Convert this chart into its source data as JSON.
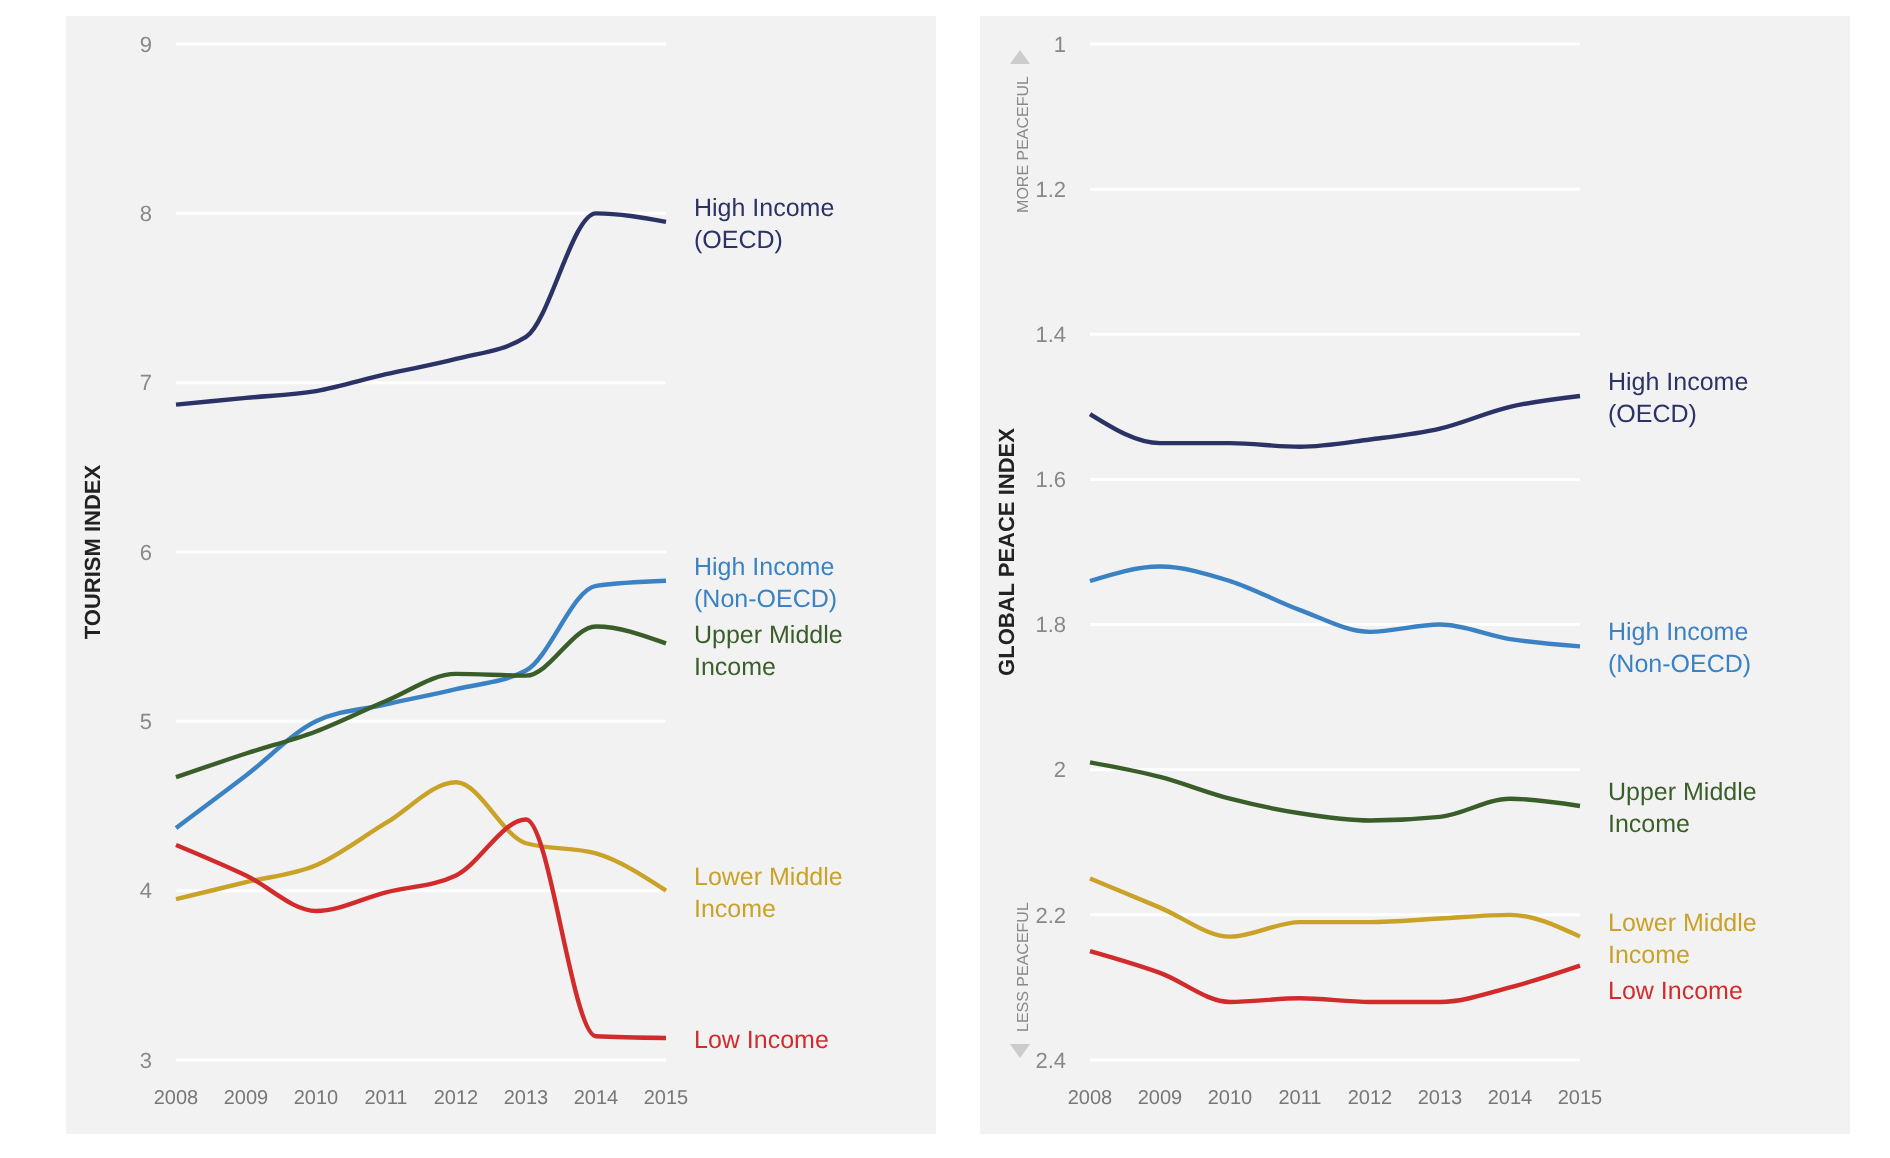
{
  "chart_data": [
    {
      "type": "line",
      "ylabel": "TOURISM INDEX",
      "x": [
        2008,
        2009,
        2010,
        2011,
        2012,
        2013,
        2014,
        2015
      ],
      "xlim": [
        2008,
        2015
      ],
      "xticks": [
        2008,
        2009,
        2010,
        2011,
        2012,
        2013,
        2014,
        2015
      ],
      "ylim": [
        3,
        9
      ],
      "yticks": [
        3,
        4,
        5,
        6,
        7,
        8,
        9
      ],
      "grid": "y",
      "series": [
        {
          "name": "High Income (OECD)",
          "color": "#2b3366",
          "values": [
            6.87,
            6.91,
            6.95,
            7.05,
            7.14,
            7.27,
            8.0,
            7.95
          ]
        },
        {
          "name": "High Income (Non-OECD)",
          "color": "#3b82c4",
          "values": [
            4.37,
            4.68,
            5.0,
            5.1,
            5.19,
            5.3,
            5.8,
            5.83
          ]
        },
        {
          "name": "Upper Middle Income",
          "color": "#3a5e2a",
          "values": [
            4.67,
            4.81,
            4.94,
            5.12,
            5.28,
            5.27,
            5.56,
            5.46
          ]
        },
        {
          "name": "Lower Middle Income",
          "color": "#c9a227",
          "values": [
            3.95,
            4.05,
            4.15,
            4.4,
            4.64,
            4.28,
            4.22,
            4.0
          ]
        },
        {
          "name": "Low Income",
          "color": "#d22b2b",
          "values": [
            4.27,
            4.09,
            3.88,
            3.99,
            4.09,
            4.42,
            3.14,
            3.13
          ]
        }
      ]
    },
    {
      "type": "line",
      "ylabel": "GLOBAL PEACE INDEX",
      "annotations": [
        "MORE PEACEFUL",
        "LESS PEACEFUL"
      ],
      "x": [
        2008,
        2009,
        2010,
        2011,
        2012,
        2013,
        2014,
        2015
      ],
      "xlim": [
        2008,
        2015
      ],
      "xticks": [
        2008,
        2009,
        2010,
        2011,
        2012,
        2013,
        2014,
        2015
      ],
      "ylim": [
        2.4,
        1
      ],
      "yticks": [
        1,
        1.2,
        1.4,
        1.6,
        1.8,
        2,
        2.2,
        2.4
      ],
      "grid": "y",
      "series": [
        {
          "name": "High Income (OECD)",
          "color": "#2b3366",
          "values": [
            1.51,
            1.55,
            1.55,
            1.555,
            1.545,
            1.53,
            1.5,
            1.485
          ]
        },
        {
          "name": "High Income (Non-OECD)",
          "color": "#3b82c4",
          "values": [
            1.74,
            1.72,
            1.74,
            1.78,
            1.81,
            1.8,
            1.82,
            1.83
          ]
        },
        {
          "name": "Upper Middle Income",
          "color": "#3a5e2a",
          "values": [
            1.99,
            2.01,
            2.04,
            2.06,
            2.07,
            2.065,
            2.04,
            2.05
          ]
        },
        {
          "name": "Lower Middle Income",
          "color": "#c9a227",
          "values": [
            2.15,
            2.19,
            2.23,
            2.21,
            2.21,
            2.205,
            2.2,
            2.23
          ]
        },
        {
          "name": "Low Income",
          "color": "#d22b2b",
          "values": [
            2.25,
            2.28,
            2.32,
            2.315,
            2.32,
            2.32,
            2.3,
            2.27
          ]
        }
      ]
    }
  ]
}
